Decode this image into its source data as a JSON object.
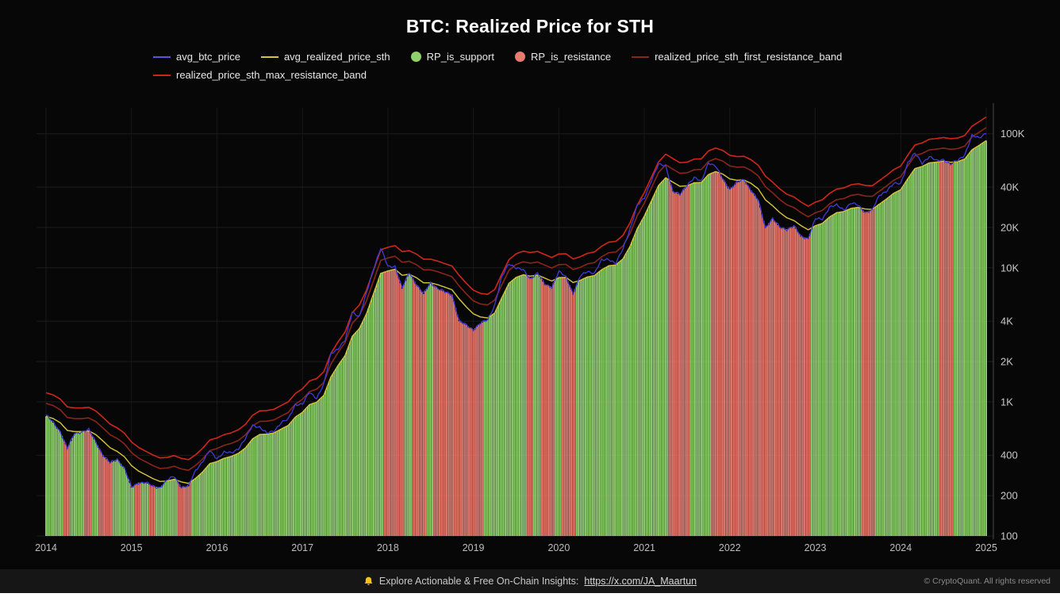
{
  "title": "BTC: Realized Price for STH",
  "legend": [
    {
      "label": "avg_btc_price",
      "color": "#5a52e0",
      "type": "line"
    },
    {
      "label": "avg_realized_price_sth",
      "color": "#d6c53c",
      "type": "line"
    },
    {
      "label": "RP_is_support",
      "color": "#8ed16d",
      "type": "dot"
    },
    {
      "label": "RP_is_resistance",
      "color": "#e87b6f",
      "type": "dot"
    },
    {
      "label": "realized_price_sth_first_resistance_band",
      "color": "#8b241c",
      "type": "line"
    },
    {
      "label": "realized_price_sth_max_resistance_band",
      "color": "#d0261a",
      "type": "line"
    }
  ],
  "footer": {
    "promo_text": "Explore Actionable & Free On-Chain Insights:",
    "promo_link": "https://x.com/JA_Maartun",
    "copyright": "© CryptoQuant. All rights reserved"
  },
  "chart_data": {
    "type": "line",
    "title": "BTC: Realized Price for STH",
    "y_scale": "log",
    "ylim": [
      100,
      140000
    ],
    "grid": true,
    "legend_position": "top",
    "x_ticks": [
      "2014",
      "2015",
      "2016",
      "2017",
      "2018",
      "2019",
      "2020",
      "2021",
      "2022",
      "2023",
      "2024",
      "2025"
    ],
    "y_ticks": [
      {
        "label": "100K",
        "value": 100000
      },
      {
        "label": "40K",
        "value": 40000
      },
      {
        "label": "20K",
        "value": 20000
      },
      {
        "label": "10K",
        "value": 10000
      },
      {
        "label": "4K",
        "value": 4000
      },
      {
        "label": "2K",
        "value": 2000
      },
      {
        "label": "1K",
        "value": 1000
      },
      {
        "label": "400",
        "value": 400
      },
      {
        "label": "200",
        "value": 200
      },
      {
        "label": "100",
        "value": 100
      }
    ],
    "x_unit": "months since 2014-01, one value per month through 2025-01",
    "series": [
      {
        "name": "avg_btc_price",
        "color": "#403bd8",
        "values": [
          800,
          700,
          600,
          450,
          580,
          600,
          620,
          500,
          400,
          350,
          375,
          320,
          230,
          250,
          250,
          235,
          230,
          260,
          280,
          230,
          235,
          310,
          360,
          430,
          380,
          420,
          415,
          450,
          530,
          670,
          650,
          580,
          610,
          700,
          740,
          960,
          960,
          1180,
          1070,
          1350,
          2300,
          2500,
          2870,
          4700,
          4340,
          6450,
          10000,
          14000,
          10200,
          10300,
          7000,
          9250,
          7500,
          6400,
          7750,
          7000,
          6600,
          6300,
          4000,
          3740,
          3460,
          3850,
          4100,
          5300,
          8550,
          10800,
          10000,
          9600,
          8300,
          9150,
          7550,
          7200,
          9350,
          8550,
          6440,
          8620,
          9450,
          9140,
          11350,
          11650,
          10780,
          13800,
          19700,
          29000,
          33100,
          45200,
          58800,
          57750,
          37300,
          35000,
          41600,
          47150,
          43800,
          61300,
          57000,
          46200,
          38500,
          43200,
          45550,
          37650,
          31800,
          19900,
          23300,
          20050,
          19400,
          20500,
          17150,
          16550,
          23100,
          23150,
          28500,
          29250,
          27200,
          30450,
          29250,
          25950,
          26950,
          34650,
          37700,
          42250,
          42550,
          61150,
          71300,
          60650,
          67500,
          62750,
          64600,
          58950,
          63300,
          70200,
          96400,
          93400,
          102000
        ]
      },
      {
        "name": "avg_realized_price_sth",
        "color": "#d6c53c",
        "values": [
          780,
          752,
          699,
          612,
          601,
          601,
          608,
          570,
          511,
          455,
          427,
          390,
          335,
          305,
          286,
          268,
          255,
          257,
          265,
          253,
          247,
          269,
          301,
          347,
          359,
          380,
          392,
          413,
          454,
          530,
          572,
          575,
          587,
          627,
          667,
          770,
          836,
          956,
          996,
          1120,
          1533,
          1871,
          2221,
          3089,
          3527,
          4550,
          6458,
          9098,
          9484,
          9770,
          8800,
          8958,
          8448,
          7731,
          7738,
          7480,
          7172,
          6867,
          5864,
          5121,
          4540,
          4299,
          4229,
          4604,
          5986,
          7671,
          8486,
          8876,
          8674,
          8841,
          8390,
          7974,
          8456,
          8489,
          7772,
          8069,
          8553,
          8758,
          9666,
          10361,
          10508,
          11660,
          14474,
          19558,
          24298,
          31614,
          41129,
          46947,
          43571,
          40571,
          40931,
          43108,
          43350,
          49633,
          52211,
          50107,
          46045,
          45049,
          45225,
          42574,
          38803,
          32187,
          29077,
          25918,
          23637,
          22539,
          20653,
          19217,
          20576,
          21477,
          23935,
          25796,
          26287,
          27745,
          28272,
          27460,
          27282,
          29861,
          32605,
          35981,
          38281,
          46286,
          55041,
          57005,
          60678,
          61404,
          62523,
          61273,
          61982,
          64858,
          75898,
          82024,
          89016
        ]
      }
    ],
    "band_multipliers": {
      "first_resistance": 1.25,
      "max_resistance": 1.5
    },
    "rp_is_support": [
      1,
      1,
      1,
      0,
      1,
      1,
      0,
      1,
      0,
      0,
      1,
      1,
      1,
      0,
      1,
      0,
      1,
      1,
      1,
      0,
      0,
      1,
      1,
      1,
      1,
      1,
      1,
      1,
      1,
      1,
      1,
      1,
      1,
      1,
      1,
      1,
      1,
      1,
      1,
      1,
      1,
      1,
      1,
      1,
      1,
      1,
      1,
      1,
      0,
      0,
      0,
      1,
      0,
      0,
      1,
      0,
      0,
      0,
      0,
      0,
      0,
      0,
      1,
      1,
      1,
      1,
      1,
      1,
      0,
      1,
      0,
      0,
      1,
      0,
      0,
      1,
      1,
      1,
      1,
      1,
      1,
      1,
      1,
      1,
      1,
      1,
      1,
      1,
      0,
      0,
      0,
      1,
      1,
      1,
      0,
      0,
      0,
      0,
      0,
      0,
      0,
      0,
      0,
      0,
      0,
      0,
      0,
      0,
      1,
      1,
      1,
      1,
      1,
      1,
      1,
      0,
      0,
      1,
      1,
      1,
      1,
      1,
      1,
      1,
      1,
      1,
      0,
      0,
      1,
      1,
      1,
      1,
      1
    ],
    "colors": {
      "support_fill": "#8ed16d",
      "resistance_fill": "#e87b6f",
      "btc_line": "#403bd8",
      "realized_line": "#d6c53c",
      "first_band_line": "#8b241c",
      "max_band_line": "#d0261a",
      "axis_label": "#c9c9c9",
      "x_label": "#bdbdbd"
    }
  }
}
